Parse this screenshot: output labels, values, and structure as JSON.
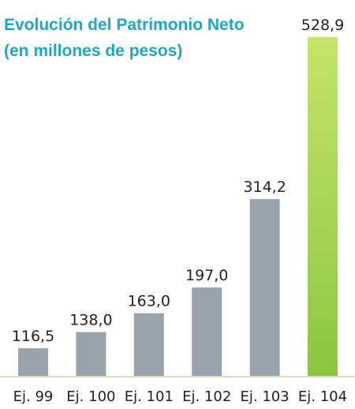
{
  "chart_data": {
    "type": "bar",
    "title_lines": [
      "Evolución del Patrimonio Neto",
      "(en millones de pesos)"
    ],
    "categories": [
      "Ej. 99",
      "Ej. 100",
      "Ej. 101",
      "Ej. 102",
      "Ej. 103",
      "Ej. 104"
    ],
    "values": [
      116.5,
      138.0,
      163.0,
      197.0,
      314.2,
      528.9
    ],
    "value_labels": [
      "116,5",
      "138,0",
      "163,0",
      "197,0",
      "314,2",
      "528,9"
    ],
    "ylim": [
      80,
      528.9
    ],
    "xlabel": "",
    "ylabel": "",
    "grid": false,
    "legend": "none",
    "colors": {
      "title": "#1fa6c4",
      "bar": "#9aa3ac",
      "bar_highlight": "#8cc63f",
      "bar_highlight_light": "#c5e46a",
      "label": "#222222",
      "baseline": "#d8dcc4"
    }
  }
}
